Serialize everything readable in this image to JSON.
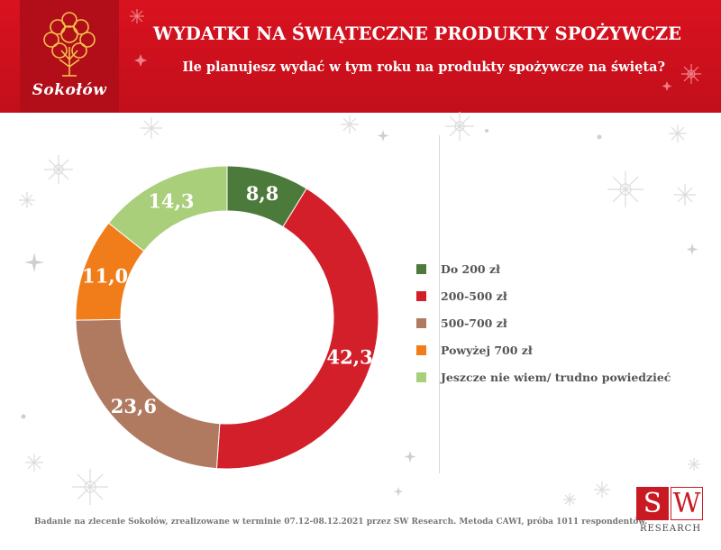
{
  "header": {
    "logo_text": "Sokołów",
    "title": "WYDATKI NA ŚWIĄTECZNE PRODUKTY SPOŻYWCZE",
    "subtitle": "Ile planujesz wydać w tym roku na produkty spożywcze na święta?"
  },
  "chart_data": {
    "type": "pie",
    "subtype": "donut",
    "labels": [
      "Do 200 zł",
      "200-500 zł",
      "500-700 zł",
      "Powyżej 700 zł",
      "Jeszcze nie wiem/ trudno powiedzieć"
    ],
    "values": [
      8.8,
      42.3,
      23.6,
      11.0,
      14.3
    ],
    "value_labels": [
      "8,8",
      "42,3",
      "23,6",
      "11,0",
      "14,3"
    ],
    "colors": [
      "#4c7a3b",
      "#d31f2a",
      "#b07a60",
      "#f07d1a",
      "#a9cf7b"
    ],
    "legend_position": "right"
  },
  "footer": {
    "note": "Badanie na zlecenie Sokołów, zrealizowane w terminie 07.12-08.12.2021 przez SW Research. Metoda CAWI, próba 1011 respondentów."
  },
  "sw_logo": {
    "letter_s": "S",
    "letter_w": "W",
    "text": "RESEARCH"
  }
}
